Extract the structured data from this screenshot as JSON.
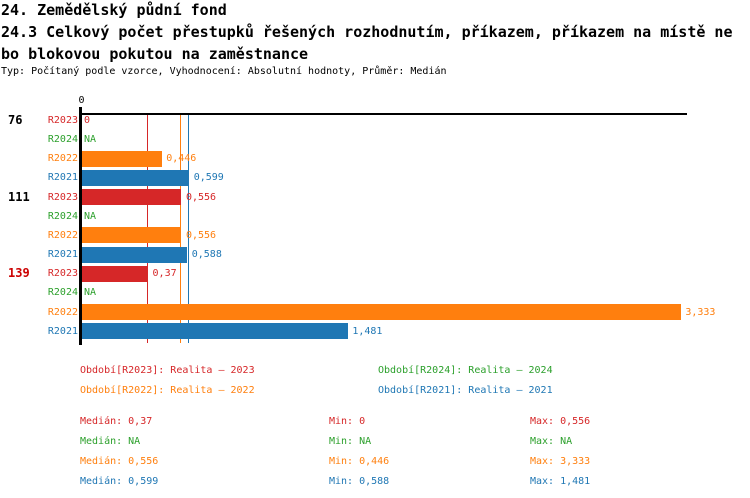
{
  "header": {
    "line1": "24. Zemědělský půdní fond",
    "line2": "24.3 Celkový počet přestupků řešených rozhodnutím, příkazem, příkazem na místě ne",
    "line3": "bo blokovou pokutou na zaměstnance",
    "meta": "Typ: Počítaný podle vzorce, Vyhodnocení: Absolutní hodnoty, Průměr: Medián"
  },
  "colors": {
    "R2023": "#d62728",
    "R2024": "#2ca02c",
    "R2022": "#ff7f0e",
    "R2021": "#1f77b4",
    "axis": "#000000",
    "highlight_group_label": "#cc0000"
  },
  "chart_data": {
    "type": "bar",
    "orientation": "horizontal",
    "title": "24.3 Celkový počet přestupků řešených rozhodnutím, příkazem, příkazem na místě nebo blokovou pokutou na zaměstnance",
    "xlim": [
      0,
      3.37
    ],
    "zero_tick_label": "0",
    "grid": false,
    "groups": [
      {
        "label": "76",
        "label_color": "#000000",
        "bars": [
          {
            "series": "R2023",
            "value": 0,
            "display": "0"
          },
          {
            "series": "R2024",
            "value": null,
            "display": "NA"
          },
          {
            "series": "R2022",
            "value": 0.446,
            "display": "0,446"
          },
          {
            "series": "R2021",
            "value": 0.599,
            "display": "0,599"
          }
        ]
      },
      {
        "label": "111",
        "label_color": "#000000",
        "bars": [
          {
            "series": "R2023",
            "value": 0.556,
            "display": "0,556"
          },
          {
            "series": "R2024",
            "value": null,
            "display": "NA"
          },
          {
            "series": "R2022",
            "value": 0.556,
            "display": "0,556"
          },
          {
            "series": "R2021",
            "value": 0.588,
            "display": "0,588"
          }
        ]
      },
      {
        "label": "139",
        "label_color": "#cc0000",
        "bars": [
          {
            "series": "R2023",
            "value": 0.37,
            "display": "0,37"
          },
          {
            "series": "R2024",
            "value": null,
            "display": "NA"
          },
          {
            "series": "R2022",
            "value": 3.333,
            "display": "3,333"
          },
          {
            "series": "R2021",
            "value": 1.481,
            "display": "1,481"
          }
        ]
      }
    ],
    "median_lines": [
      {
        "series": "R2023",
        "value": 0.37
      },
      {
        "series": "R2022",
        "value": 0.556
      },
      {
        "series": "R2021",
        "value": 0.599
      }
    ]
  },
  "legend": [
    {
      "series": "R2023",
      "label": "Období[R2023]: Realita – 2023"
    },
    {
      "series": "R2024",
      "label": "Období[R2024]: Realita – 2024"
    },
    {
      "series": "R2022",
      "label": "Období[R2022]: Realita – 2022"
    },
    {
      "series": "R2021",
      "label": "Období[R2021]: Realita – 2021"
    }
  ],
  "stats_labels": {
    "median": "Medián",
    "min": "Min",
    "max": "Max"
  },
  "stats": [
    {
      "series": "R2023",
      "median": "0,37",
      "min": "0",
      "max": "0,556"
    },
    {
      "series": "R2024",
      "median": "NA",
      "min": "NA",
      "max": "NA"
    },
    {
      "series": "R2022",
      "median": "0,556",
      "min": "0,446",
      "max": "3,333"
    },
    {
      "series": "R2021",
      "median": "0,599",
      "min": "0,588",
      "max": "1,481"
    }
  ]
}
